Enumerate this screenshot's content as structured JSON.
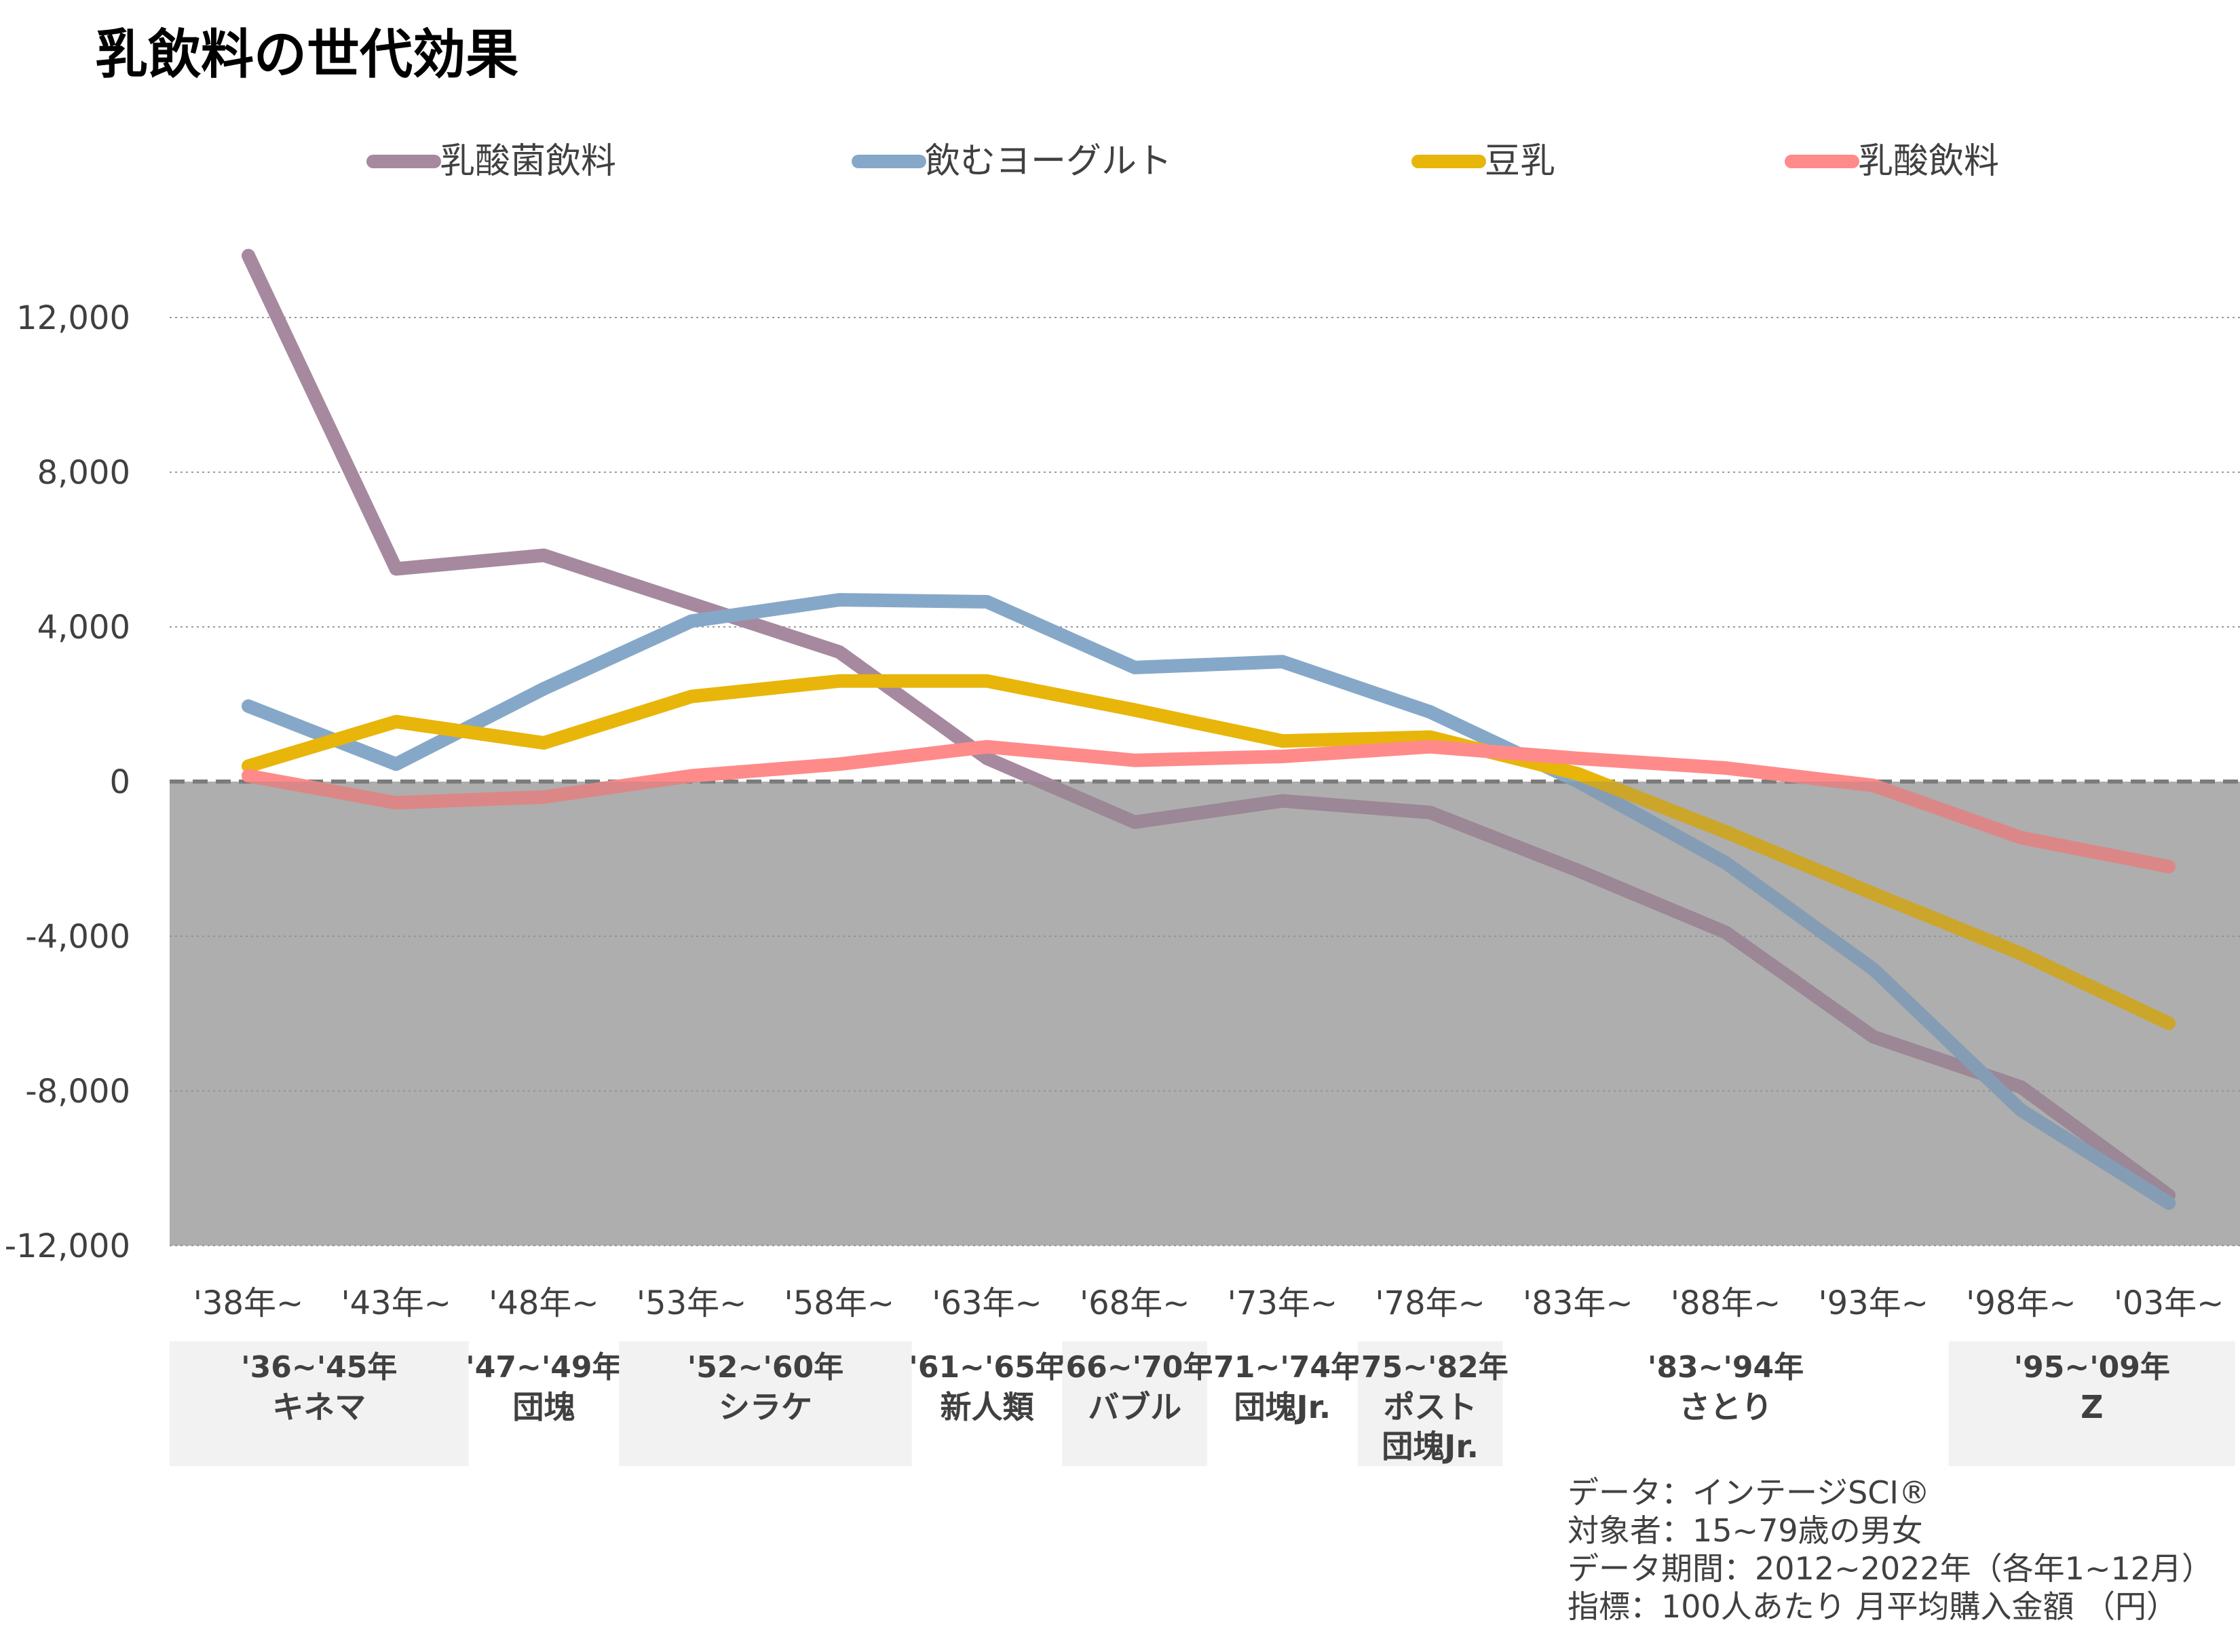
{
  "title": "乳飲料の世代効果",
  "chart_data": {
    "type": "line",
    "categories": [
      "'38年~",
      "'43年~",
      "'48年~",
      "'53年~",
      "'58年~",
      "'63年~",
      "'68年~",
      "'73年~",
      "'78年~",
      "'83年~",
      "'88年~",
      "'93年~",
      "'98年~",
      "'03年~"
    ],
    "series": [
      {
        "name": "乳酸菌飲料",
        "color": "#A6899F",
        "values": [
          13600,
          5500,
          5850,
          4600,
          3350,
          600,
          -1050,
          -500,
          -800,
          -2300,
          -3900,
          -6600,
          -7900,
          -10700
        ]
      },
      {
        "name": "飲むヨーグルト",
        "color": "#86A8C8",
        "values": [
          1950,
          450,
          2400,
          4150,
          4700,
          4650,
          2950,
          3100,
          1800,
          0,
          -2100,
          -4850,
          -8500,
          -10900
        ]
      },
      {
        "name": "豆乳",
        "color": "#E8B50A",
        "values": [
          400,
          1550,
          1000,
          2200,
          2600,
          2600,
          1850,
          1050,
          1150,
          200,
          -1300,
          -2900,
          -4450,
          -6250
        ]
      },
      {
        "name": "乳酸飲料",
        "color": "#FF8A8A",
        "values": [
          150,
          -550,
          -400,
          150,
          450,
          900,
          550,
          650,
          900,
          600,
          350,
          -100,
          -1450,
          -2200
        ]
      }
    ],
    "yticks": [
      12000,
      8000,
      4000,
      0,
      -4000,
      -8000,
      -12000
    ],
    "ytick_labels": [
      "12,000",
      "8,000",
      "4,000",
      "0",
      "-4,000",
      "-8,000",
      "-12,000"
    ],
    "ylim": [
      -12000,
      15000
    ],
    "legend_position": "top",
    "grid": true,
    "negative_region_color": "#BFBFBF",
    "generations": [
      {
        "years": "'36~'45年",
        "name": "キネマ",
        "shaded": true,
        "from": 0,
        "to": 1
      },
      {
        "years": "'47~'49年",
        "name": "団塊",
        "shaded": false,
        "from": 2,
        "to": 2
      },
      {
        "years": "'52~'60年",
        "name": "シラケ",
        "shaded": true,
        "from": 3,
        "to": 4
      },
      {
        "years": "'61~'65年",
        "name": "新人類",
        "shaded": false,
        "from": 5,
        "to": 5
      },
      {
        "years": "'66~'70年",
        "name": "バブル",
        "shaded": true,
        "from": 6,
        "to": 6
      },
      {
        "years": "'71~'74年",
        "name": "団塊Jr.",
        "shaded": false,
        "from": 7,
        "to": 7
      },
      {
        "years": "'75~'82年",
        "name": "ポスト\n団塊Jr.",
        "shaded": true,
        "from": 8,
        "to": 8
      },
      {
        "years": "'83~'94年",
        "name": "さとり",
        "shaded": false,
        "from": 9,
        "to": 11
      },
      {
        "years": "'95~'09年",
        "name": "Z",
        "shaded": true,
        "from": 12,
        "to": 13
      }
    ]
  },
  "notes": [
    "データ：インテージSCI®",
    "対象者：15~79歳の男女",
    "データ期間：2012~2022年（各年1~12月）",
    "指標：100人あたり 月平均購入金額 （円）"
  ]
}
